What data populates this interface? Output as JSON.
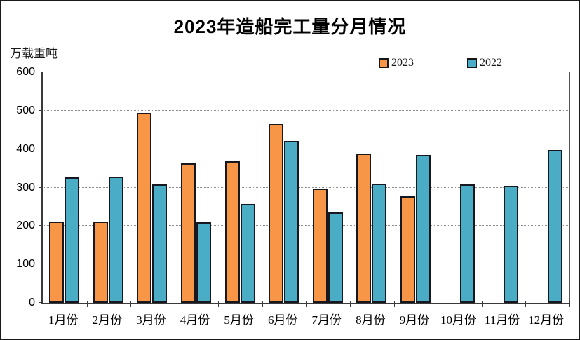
{
  "header": {
    "title": "2023年造船完工量分月情况",
    "unit_label": "万载重吨"
  },
  "colors": {
    "series_2023": "#F79646",
    "series_2022": "#4BACC6",
    "bar_border": "#17171f",
    "gridline": "#8c8c8c",
    "axis": "#3a3a3a"
  },
  "chart_data": {
    "type": "bar",
    "title": "2023年造船完工量分月情况",
    "ylabel": "万载重吨",
    "xlabel": "",
    "categories": [
      "1月份",
      "2月份",
      "3月份",
      "4月份",
      "5月份",
      "6月份",
      "7月份",
      "8月份",
      "9月份",
      "10月份",
      "11月份",
      "12月份"
    ],
    "series": [
      {
        "name": "2023",
        "color": "#F79646",
        "values": [
          211,
          212,
          495,
          363,
          368,
          465,
          297,
          389,
          277,
          null,
          null,
          null
        ]
      },
      {
        "name": "2022",
        "color": "#4BACC6",
        "values": [
          326,
          328,
          308,
          210,
          257,
          422,
          236,
          310,
          385,
          308,
          304,
          397
        ]
      }
    ],
    "ylim": [
      0,
      600
    ],
    "yticks": [
      0,
      100,
      200,
      300,
      400,
      500,
      600
    ],
    "grid": "horizontal-dotted",
    "legend_position": "top-right"
  }
}
